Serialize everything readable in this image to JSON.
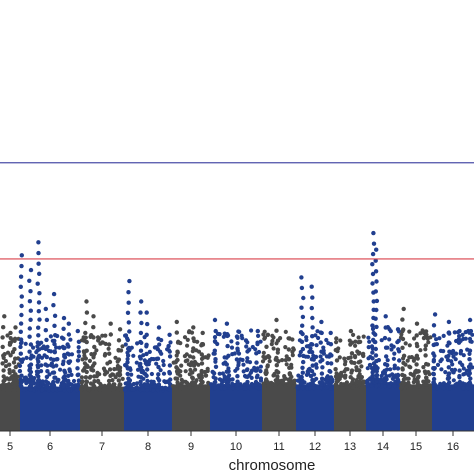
{
  "chart_data": {
    "type": "scatter",
    "subtype": "manhattan",
    "xlabel": "chromosome",
    "ylabel": "",
    "ylim": [
      0,
      20
    ],
    "grid": false,
    "legend": "none",
    "colors": {
      "odd": "#4a4a4a",
      "even": "#213f8f"
    },
    "thresholds": [
      {
        "y": 14.5,
        "color": "#4b4fa8"
      },
      {
        "y": 9.3,
        "color": "#d9424b"
      }
    ],
    "chromosomes": [
      {
        "label": "5",
        "span": [
          0,
          20
        ],
        "color": "odd",
        "base_top": 4.0,
        "tops": [
          6.2,
          5.3,
          4.9,
          5.6
        ]
      },
      {
        "label": "6",
        "span": [
          20,
          80
        ],
        "color": "even",
        "base_top": 4.0,
        "tops": [
          9.5,
          8.7,
          10.2,
          6.6,
          7.4,
          6.1,
          5.8,
          5.4
        ]
      },
      {
        "label": "7",
        "span": [
          80,
          124
        ],
        "color": "odd",
        "base_top": 4.0,
        "tops": [
          7.0,
          6.2,
          5.8,
          5.5
        ]
      },
      {
        "label": "8",
        "span": [
          124,
          172
        ],
        "color": "even",
        "base_top": 4.0,
        "tops": [
          8.1,
          7.0,
          6.4,
          5.6,
          5.2
        ]
      },
      {
        "label": "9",
        "span": [
          172,
          210
        ],
        "color": "odd",
        "base_top": 4.2,
        "tops": [
          5.9,
          5.6,
          5.3
        ]
      },
      {
        "label": "10",
        "span": [
          210,
          262
        ],
        "color": "even",
        "base_top": 4.2,
        "tops": [
          6.0,
          5.8,
          5.1,
          4.9,
          5.4
        ]
      },
      {
        "label": "11",
        "span": [
          262,
          296
        ],
        "color": "odd",
        "base_top": 4.4,
        "tops": [
          5.2,
          6.0,
          5.0
        ]
      },
      {
        "label": "12",
        "span": [
          296,
          334
        ],
        "color": "even",
        "base_top": 4.2,
        "tops": [
          8.3,
          7.8,
          5.9,
          5.3
        ]
      },
      {
        "label": "13",
        "span": [
          334,
          366
        ],
        "color": "odd",
        "base_top": 4.2,
        "tops": [
          5.0,
          5.4,
          4.8
        ]
      },
      {
        "label": "14",
        "span": [
          366,
          400
        ],
        "color": "even",
        "base_top": 4.4,
        "tops": [
          10.7,
          9.8,
          6.2,
          5.5
        ]
      },
      {
        "label": "15",
        "span": [
          400,
          432
        ],
        "color": "odd",
        "base_top": 4.2,
        "tops": [
          6.6,
          5.8,
          5.2
        ]
      },
      {
        "label": "16",
        "span": [
          432,
          474
        ],
        "color": "even",
        "base_top": 4.2,
        "tops": [
          6.3,
          5.9,
          5.4,
          6.0
        ]
      }
    ]
  }
}
